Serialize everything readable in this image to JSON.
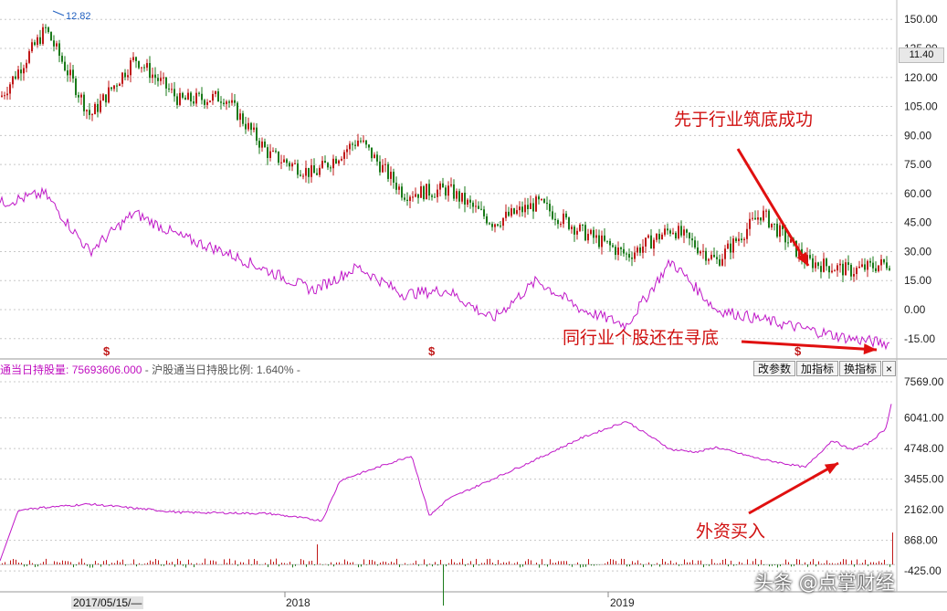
{
  "chart_data": [
    {
      "type": "line",
      "panel": "price",
      "ylim": [
        -25,
        160
      ],
      "y_ticks": [
        "150.00",
        "135.00",
        "120.00",
        "105.00",
        "90.00",
        "75.00",
        "60.00",
        "45.00",
        "30.00",
        "15.00",
        "0.00",
        "-15.00"
      ],
      "current_price": "11.40",
      "peak_label": "12.82",
      "series": [
        {
          "role": "stock-candles",
          "color": "#c01818",
          "x": [
            0,
            5,
            10,
            15,
            20,
            25,
            30,
            35,
            40,
            45,
            50,
            55,
            60,
            65,
            70,
            75,
            80,
            85,
            90,
            95,
            100
          ],
          "values": [
            110,
            145,
            100,
            130,
            108,
            110,
            80,
            70,
            88,
            60,
            62,
            45,
            55,
            40,
            28,
            42,
            25,
            50,
            25,
            20,
            25
          ]
        },
        {
          "role": "industry-line",
          "color": "#c018c8",
          "x": [
            0,
            5,
            10,
            15,
            20,
            25,
            30,
            35,
            40,
            45,
            50,
            55,
            60,
            65,
            70,
            75,
            80,
            85,
            90,
            95,
            100
          ],
          "values": [
            55,
            60,
            30,
            50,
            38,
            30,
            20,
            10,
            22,
            8,
            10,
            -5,
            15,
            0,
            -8,
            25,
            0,
            -5,
            -10,
            -15,
            -18
          ]
        }
      ],
      "markers": [
        "$",
        "$",
        "$"
      ]
    },
    {
      "type": "line",
      "panel": "holdings",
      "ylim": [
        -1000,
        7800
      ],
      "y_ticks": [
        "7569.00",
        "6041.00",
        "4748.00",
        "3455.00",
        "2162.00",
        "868.00",
        "-425.00"
      ],
      "series": [
        {
          "role": "holding-line",
          "color": "#c018c8",
          "x": [
            0,
            2,
            3,
            10,
            20,
            30,
            36,
            38,
            46,
            48,
            50,
            60,
            65,
            70,
            75,
            78,
            80,
            85,
            90,
            93,
            95,
            97,
            99,
            100
          ],
          "values": [
            0,
            2100,
            2200,
            2400,
            2050,
            2000,
            1700,
            3400,
            4450,
            1900,
            2600,
            4300,
            5200,
            5900,
            4700,
            4600,
            4800,
            4300,
            3950,
            5100,
            4700,
            4950,
            5600,
            7400
          ]
        }
      ]
    }
  ],
  "x_axis": {
    "labels": [
      "2018",
      "2019"
    ],
    "cursor_date": "2017/05/15/—"
  },
  "legend": {
    "name": "通当日持股量:",
    "value": "75693606.000",
    "sep": "-",
    "item2": "沪股通当日持股比例:",
    "value2": "1.640%",
    "sep2": "-"
  },
  "buttons": [
    "改参数",
    "加指标",
    "换指标"
  ],
  "close_icon": "×",
  "annotations": {
    "a1": "先于行业筑底成功",
    "a2": "同行业个股还在寻底",
    "a3": "外资买入"
  },
  "watermark": "头条 @点掌财经",
  "colors": {
    "up": "#c01818",
    "down": "#1a7a1a",
    "line": "#c018c8",
    "arrow": "#e01010"
  }
}
